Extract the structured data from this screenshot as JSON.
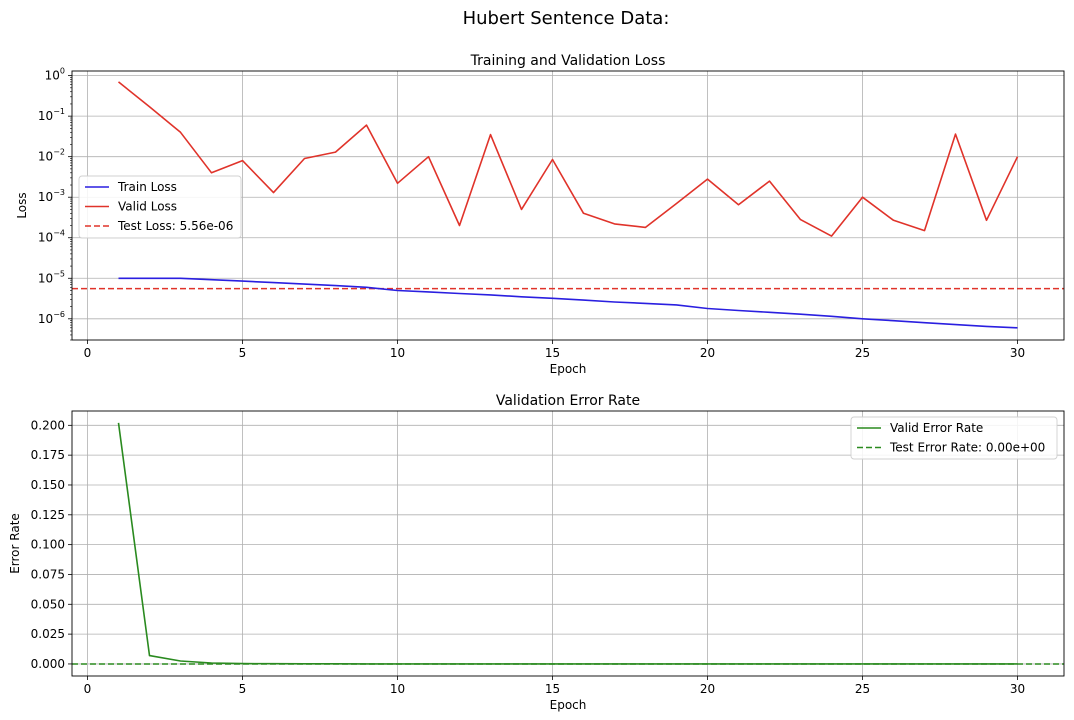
{
  "figure": {
    "suptitle": "Hubert Sentence Data:"
  },
  "chart_data": [
    {
      "type": "line",
      "title": "Training and Validation Loss",
      "xlabel": "Epoch",
      "ylabel": "Loss",
      "yscale": "log",
      "xlim": [
        -0.5,
        31.5
      ],
      "ylim": [
        3e-07,
        1.3
      ],
      "grid": true,
      "legend_position": "center-left",
      "x_ticks": [
        0,
        5,
        10,
        15,
        20,
        25,
        30
      ],
      "y_ticks": [
        {
          "value": 1e-06,
          "base": "10",
          "exp": "−6"
        },
        {
          "value": 1e-05,
          "base": "10",
          "exp": "−5"
        },
        {
          "value": 0.0001,
          "base": "10",
          "exp": "−4"
        },
        {
          "value": 0.001,
          "base": "10",
          "exp": "−3"
        },
        {
          "value": 0.01,
          "base": "10",
          "exp": "−2"
        },
        {
          "value": 0.1,
          "base": "10",
          "exp": "−1"
        },
        {
          "value": 1,
          "base": "10",
          "exp": "0"
        }
      ],
      "x": [
        1,
        2,
        3,
        4,
        5,
        6,
        7,
        8,
        9,
        10,
        11,
        12,
        13,
        14,
        15,
        16,
        17,
        18,
        19,
        20,
        21,
        22,
        23,
        24,
        25,
        26,
        27,
        28,
        29,
        30
      ],
      "series": [
        {
          "name": "Train Loss",
          "color": "#2a1fe0",
          "style": "solid",
          "values": [
            1e-05,
            1e-05,
            1e-05,
            9.2e-06,
            8.5e-06,
            7.8e-06,
            7.2e-06,
            6.6e-06,
            6e-06,
            5e-06,
            4.6e-06,
            4.2e-06,
            3.9e-06,
            3.5e-06,
            3.2e-06,
            2.9e-06,
            2.6e-06,
            2.4e-06,
            2.2e-06,
            1.8e-06,
            1.6e-06,
            1.45e-06,
            1.3e-06,
            1.15e-06,
            1e-06,
            9e-07,
            8e-07,
            7.2e-07,
            6.5e-07,
            6e-07
          ]
        },
        {
          "name": "Valid Loss",
          "color": "#e0332a",
          "style": "solid",
          "values": [
            0.7,
            0.17,
            0.04,
            0.004,
            0.008,
            0.0013,
            0.009,
            0.013,
            0.06,
            0.0022,
            0.01,
            0.0002,
            0.035,
            0.0005,
            0.0085,
            0.0004,
            0.00022,
            0.00018,
            0.0007,
            0.0028,
            0.00065,
            0.0025,
            0.00028,
            0.00011,
            0.001,
            0.00027,
            0.00015,
            0.036,
            0.00027,
            0.01
          ]
        }
      ],
      "hlines": [
        {
          "name": "Test Loss: 5.56e-06",
          "value": 5.56e-06,
          "color": "#e0332a",
          "style": "dashed"
        }
      ]
    },
    {
      "type": "line",
      "title": "Validation Error Rate",
      "xlabel": "Epoch",
      "ylabel": "Error Rate",
      "yscale": "linear",
      "xlim": [
        -0.5,
        31.5
      ],
      "ylim": [
        -0.0101,
        0.212
      ],
      "grid": true,
      "legend_position": "top-right",
      "x_ticks": [
        0,
        5,
        10,
        15,
        20,
        25,
        30
      ],
      "y_ticks": [
        "0.000",
        "0.025",
        "0.050",
        "0.075",
        "0.100",
        "0.125",
        "0.150",
        "0.175",
        "0.200"
      ],
      "x": [
        1,
        2,
        3,
        4,
        5,
        6,
        7,
        8,
        9,
        10,
        11,
        12,
        13,
        14,
        15,
        16,
        17,
        18,
        19,
        20,
        21,
        22,
        23,
        24,
        25,
        26,
        27,
        28,
        29,
        30
      ],
      "series": [
        {
          "name": "Valid Error Rate",
          "color": "#2a8a1f",
          "style": "solid",
          "values": [
            0.202,
            0.007,
            0.0025,
            0.0008,
            0.0003,
            0.0002,
            0.0001,
            0.0001,
            0,
            0,
            0,
            0,
            0,
            0,
            0,
            0,
            0,
            0,
            0,
            0,
            0,
            0,
            0,
            0,
            0,
            0,
            0,
            0,
            0,
            0
          ]
        }
      ],
      "hlines": [
        {
          "name": "Test Error Rate: 0.00e+00",
          "value": 0.0,
          "color": "#2a8a1f",
          "style": "dashed"
        }
      ]
    }
  ]
}
